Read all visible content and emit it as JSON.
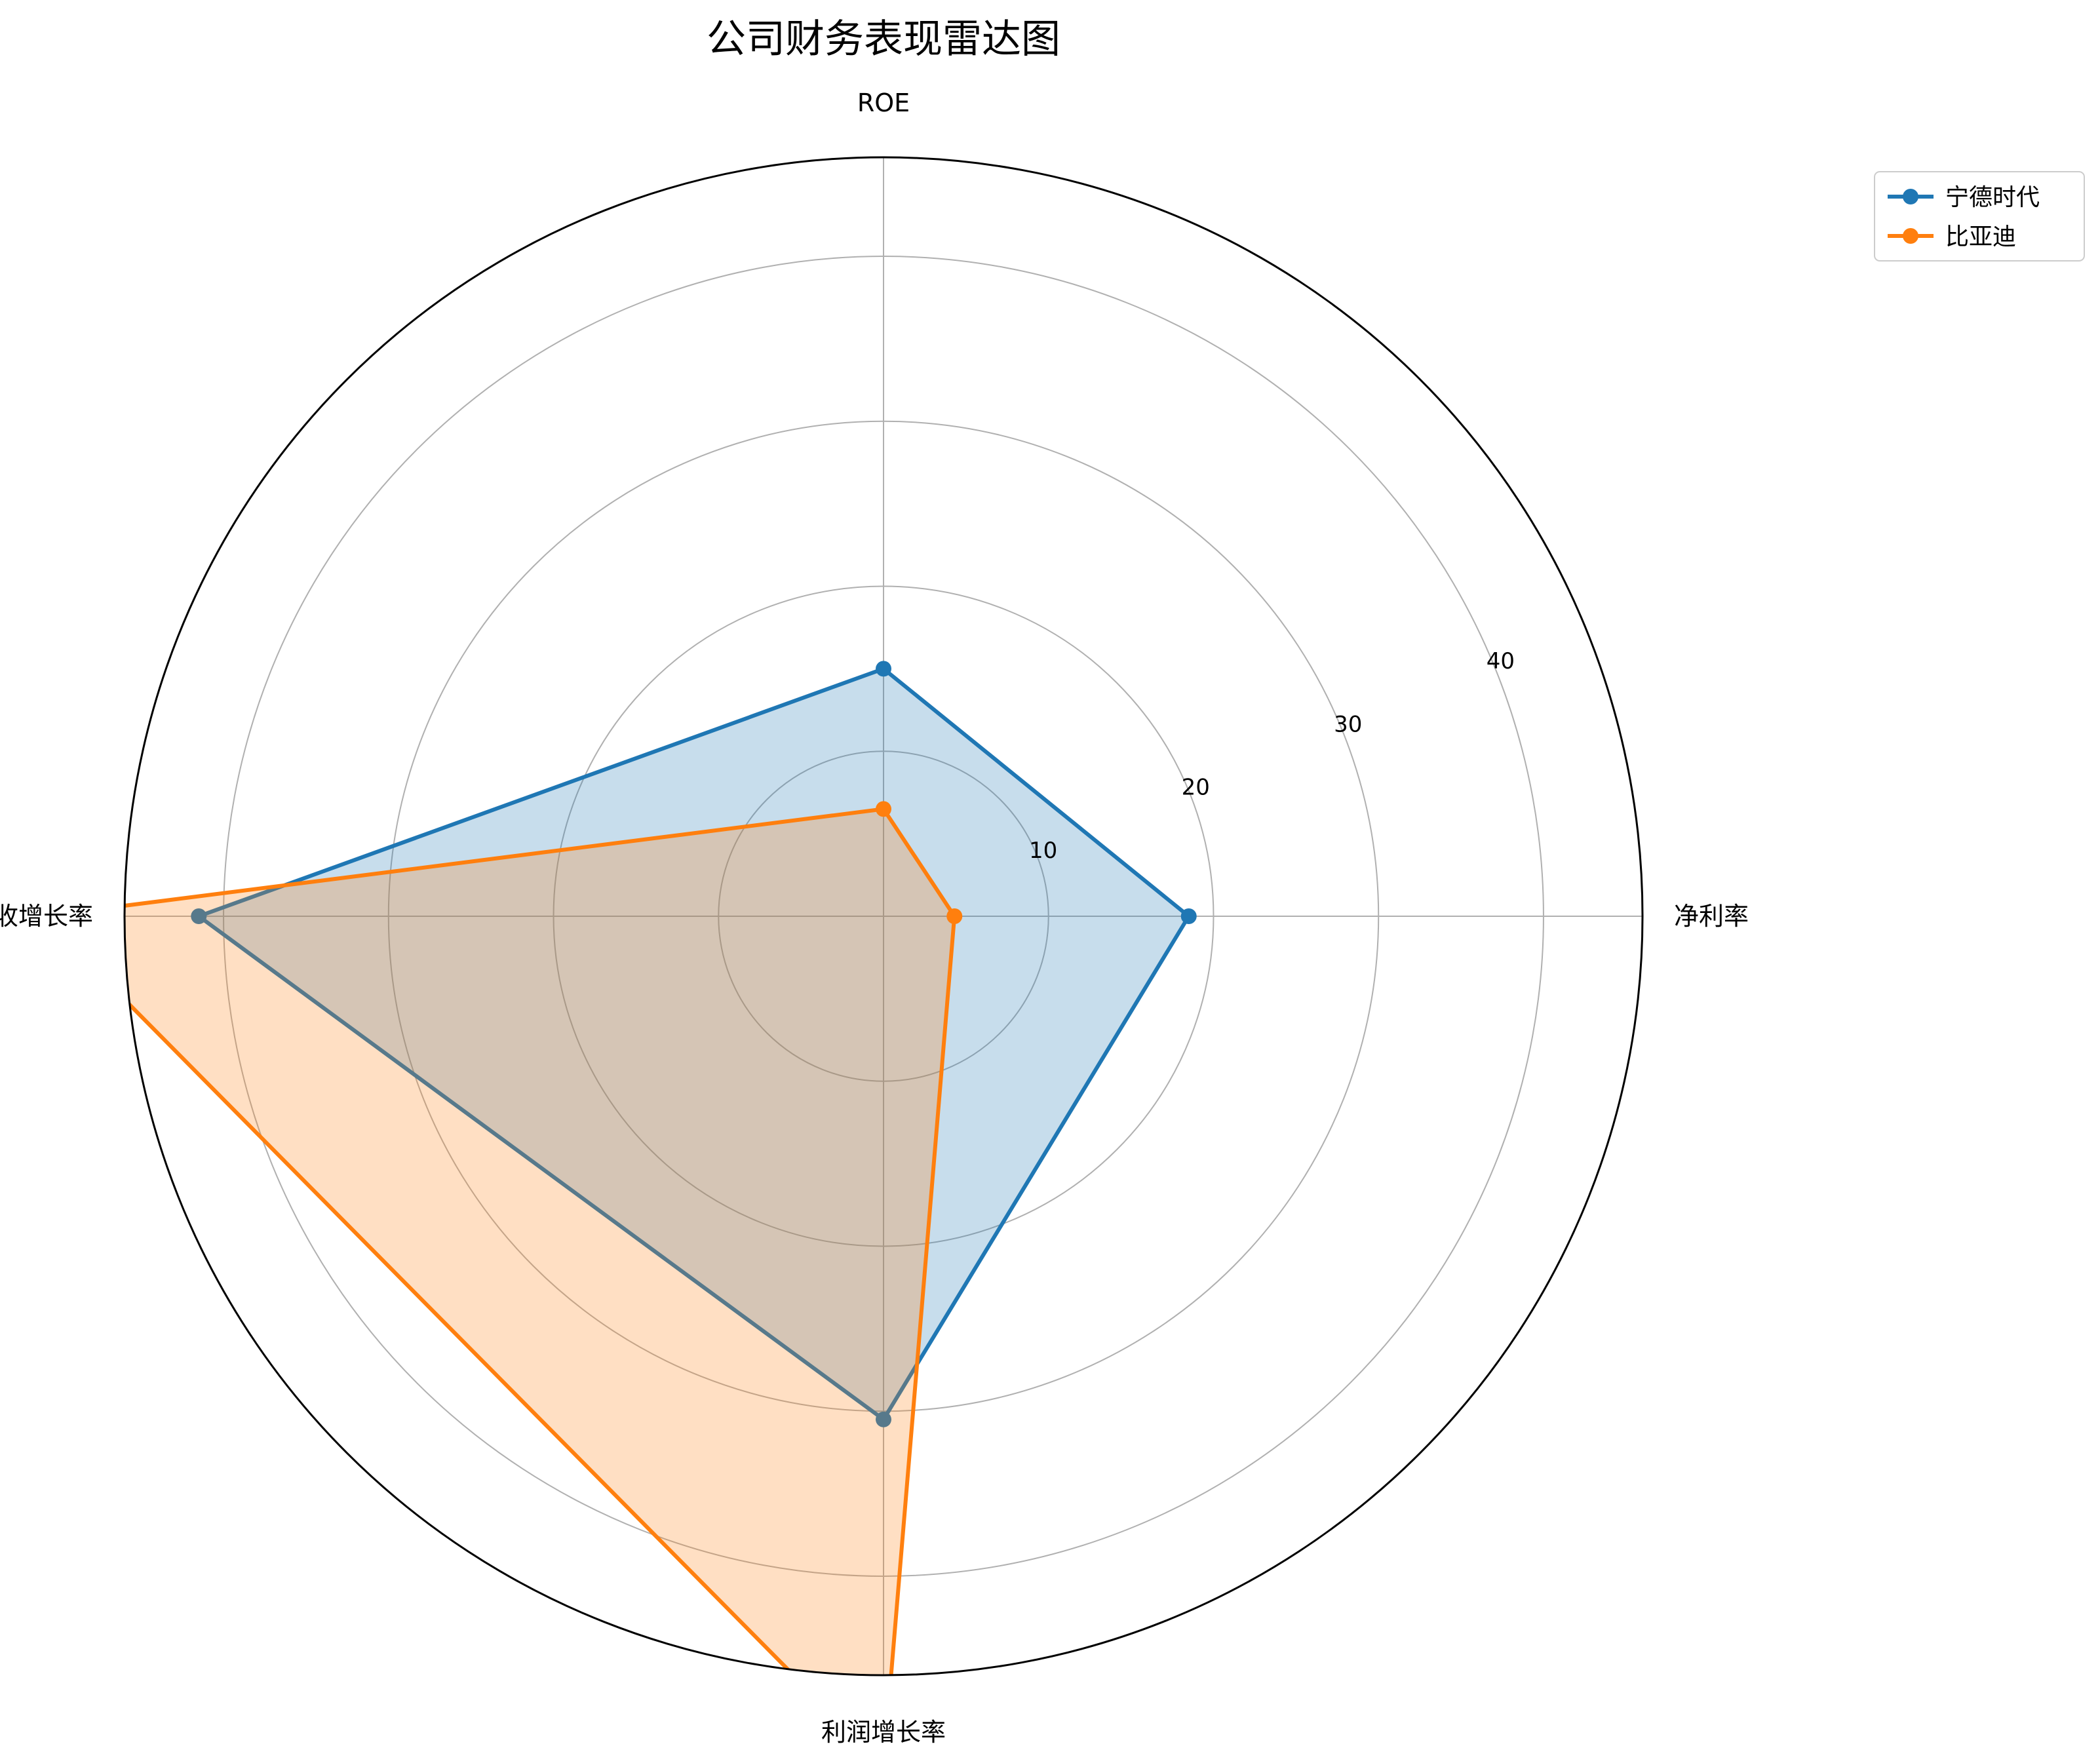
{
  "chart_data": {
    "type": "radar",
    "title": "公司财务表现雷达图",
    "axes": [
      "净利率",
      "ROE",
      "营收增长率",
      "利润增长率"
    ],
    "rticks": [
      10,
      20,
      30,
      40
    ],
    "rlim": [
      0,
      46
    ],
    "grid": true,
    "legend_position": "top-right",
    "series": [
      {
        "name": "宁德时代",
        "color": "#1f77b4",
        "values": [
          18.5,
          15.0,
          41.5,
          30.5
        ],
        "fill_opacity": 0.25
      },
      {
        "name": "比亚迪",
        "color": "#ff7f0e",
        "values": [
          4.3,
          6.5,
          51.0,
          51.5
        ],
        "fill_opacity": 0.25
      }
    ]
  }
}
